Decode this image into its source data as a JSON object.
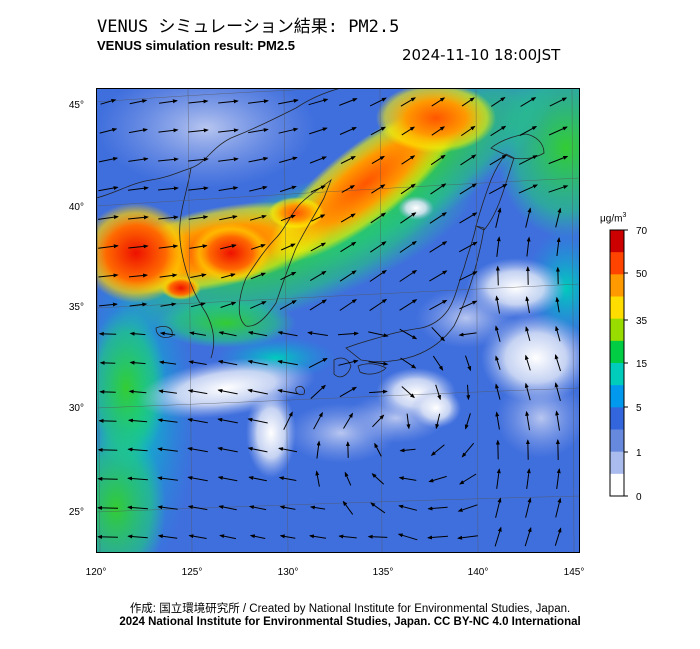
{
  "title_ja": "VENUS シミュレーション結果: PM2.5",
  "title_en": "VENUS simulation result: PM2.5",
  "timestamp": "2024-11-10 18:00JST",
  "map": {
    "lat_ticks": [
      "45°",
      "40°",
      "35°",
      "30°",
      "25°"
    ],
    "lon_ticks": [
      "120°",
      "125°",
      "130°",
      "135°",
      "140°",
      "145°"
    ],
    "lat_values": [
      45,
      40,
      35,
      30,
      25
    ],
    "lon_values": [
      120,
      125,
      130,
      135,
      140,
      145
    ]
  },
  "colorbar": {
    "unit_base": "μg/m",
    "unit_sup": "3",
    "labels": [
      "70",
      "50",
      "35",
      "15",
      "5",
      "1",
      "0"
    ],
    "colors": [
      "#cc0000",
      "#ff4400",
      "#ff9900",
      "#ffdd00",
      "#99dd00",
      "#00cc44",
      "#00ccbb",
      "#0099ee",
      "#3366dd",
      "#6688dd",
      "#aabbee",
      "#ffffff"
    ]
  },
  "footer": {
    "credit": "作成: 国立環境研究所 / Created by National Institute for Environmental Studies, Japan.",
    "copyright": "2024 National Institute for Environmental Studies, Japan. CC BY-NC 4.0 International"
  }
}
